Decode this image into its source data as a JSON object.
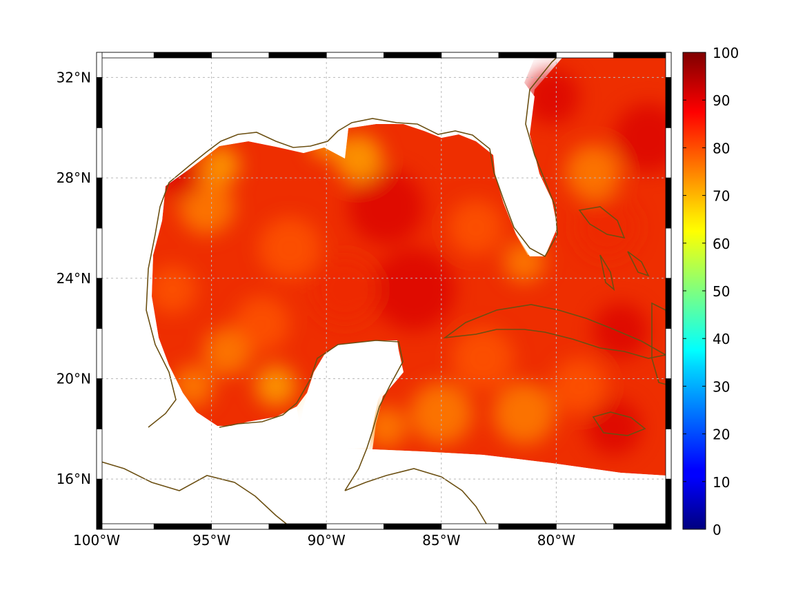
{
  "map": {
    "extent": {
      "lon_min": -100,
      "lon_max": -75,
      "lat_min": 14,
      "lat_max": 33
    },
    "lon_ticks": [
      {
        "value": -100,
        "label": "100°W"
      },
      {
        "value": -95,
        "label": "95°W"
      },
      {
        "value": -90,
        "label": "90°W"
      },
      {
        "value": -85,
        "label": "85°W"
      },
      {
        "value": -80,
        "label": "80°W"
      }
    ],
    "lat_ticks": [
      {
        "value": 16,
        "label": "16°N"
      },
      {
        "value": 20,
        "label": "20°N"
      },
      {
        "value": 24,
        "label": "24°N"
      },
      {
        "value": 28,
        "label": "28°N"
      },
      {
        "value": 32,
        "label": "32°N"
      }
    ],
    "grid": true,
    "coastline_color": "#6b4f12",
    "field_colors": [
      "#d90000",
      "#ee2a00",
      "#ff5a00",
      "#ff8a00",
      "#ffb000"
    ]
  },
  "colorbar": {
    "colormap": "jet",
    "range": [
      0,
      100
    ],
    "ticks": [
      {
        "value": 0,
        "label": "0"
      },
      {
        "value": 10,
        "label": "10"
      },
      {
        "value": 20,
        "label": "20"
      },
      {
        "value": 30,
        "label": "30"
      },
      {
        "value": 40,
        "label": "40"
      },
      {
        "value": 50,
        "label": "50"
      },
      {
        "value": 60,
        "label": "60"
      },
      {
        "value": 70,
        "label": "70"
      },
      {
        "value": 80,
        "label": "80"
      },
      {
        "value": 90,
        "label": "90"
      },
      {
        "value": 100,
        "label": "100"
      }
    ]
  }
}
